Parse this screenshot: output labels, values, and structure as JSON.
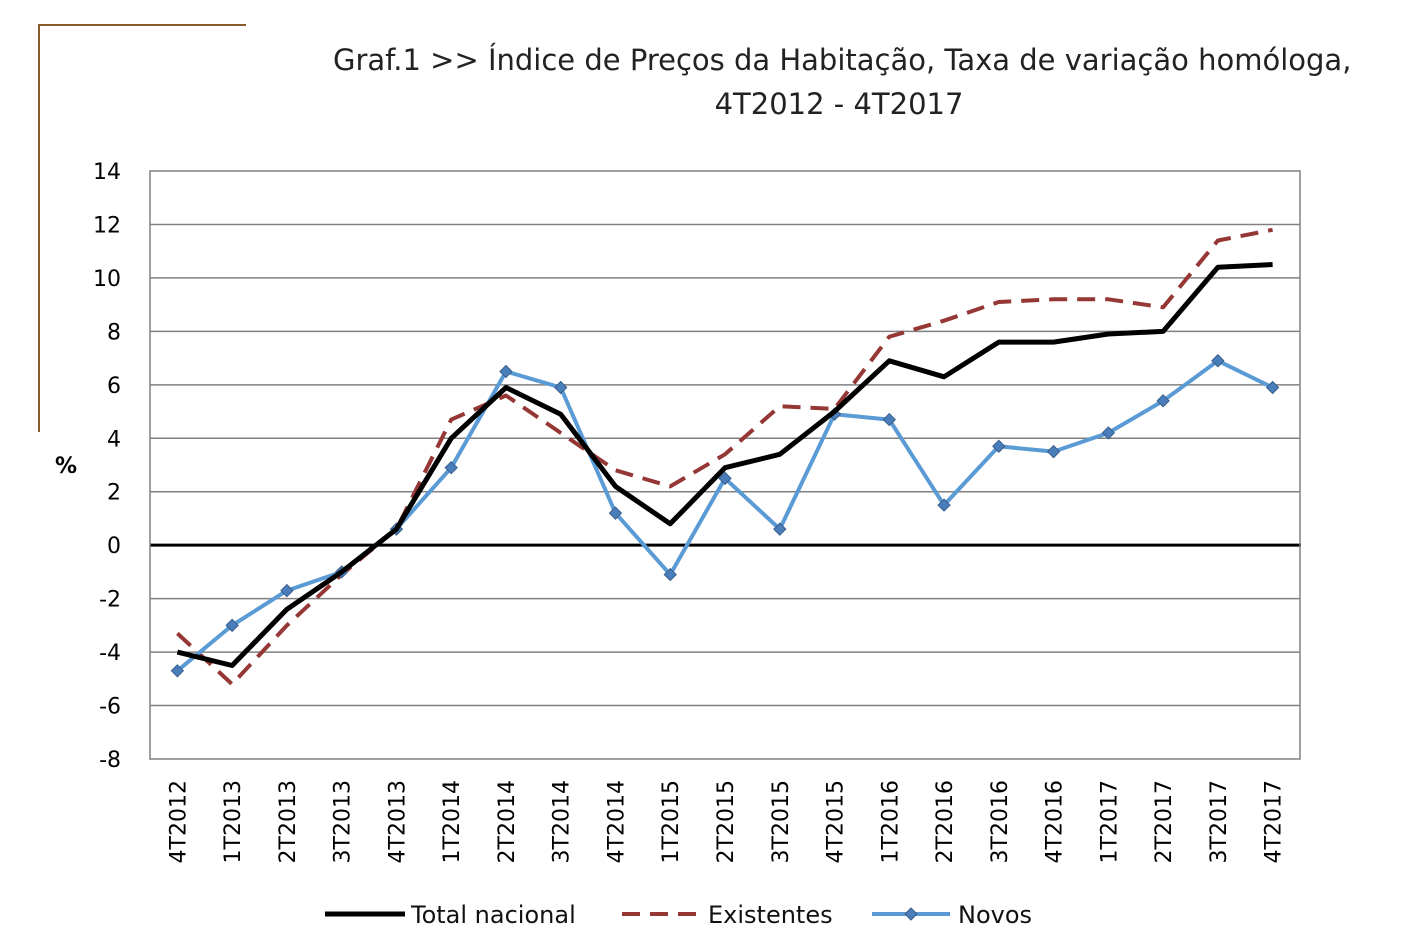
{
  "chart_data": {
    "type": "line",
    "title_line1": "Graf.1  >>  Índice de Preços da Habitação, Taxa de variação homóloga,",
    "title_line2": "4T2012 - 4T2017",
    "ylabel": "%",
    "ylim": [
      -8,
      14
    ],
    "yticks": [
      -8,
      -6,
      -4,
      -2,
      0,
      2,
      4,
      6,
      8,
      10,
      12,
      14
    ],
    "grid": true,
    "legend_position": "bottom",
    "categories": [
      "4T2012",
      "1T2013",
      "2T2013",
      "3T2013",
      "4T2013",
      "1T2014",
      "2T2014",
      "3T2014",
      "4T2014",
      "1T2015",
      "2T2015",
      "3T2015",
      "4T2015",
      "1T2016",
      "2T2016",
      "3T2016",
      "4T2016",
      "1T2017",
      "2T2017",
      "3T2017",
      "4T2017"
    ],
    "series": [
      {
        "name": "Total nacional",
        "color": "#000000",
        "style": "solid",
        "values": [
          -4.0,
          -4.5,
          -2.4,
          -1.0,
          0.6,
          4.0,
          5.9,
          4.9,
          2.2,
          0.8,
          2.9,
          3.4,
          5.0,
          6.9,
          6.3,
          7.6,
          7.6,
          7.9,
          8.0,
          10.4,
          10.5
        ]
      },
      {
        "name": "Existentes",
        "color": "#953735",
        "style": "dashed",
        "values": [
          -3.3,
          -5.2,
          -3.0,
          -1.1,
          0.6,
          4.7,
          5.6,
          4.2,
          2.8,
          2.2,
          3.4,
          5.2,
          5.1,
          7.8,
          8.4,
          9.1,
          9.2,
          9.2,
          8.9,
          11.4,
          11.8
        ]
      },
      {
        "name": "Novos",
        "color": "#5B9BD5",
        "style": "solid-markers",
        "values": [
          -4.7,
          -3.0,
          -1.7,
          -1.0,
          0.6,
          2.9,
          6.5,
          5.9,
          1.2,
          -1.1,
          2.5,
          0.6,
          4.9,
          4.7,
          1.5,
          3.7,
          3.5,
          4.2,
          5.4,
          6.9,
          5.9
        ]
      }
    ]
  }
}
